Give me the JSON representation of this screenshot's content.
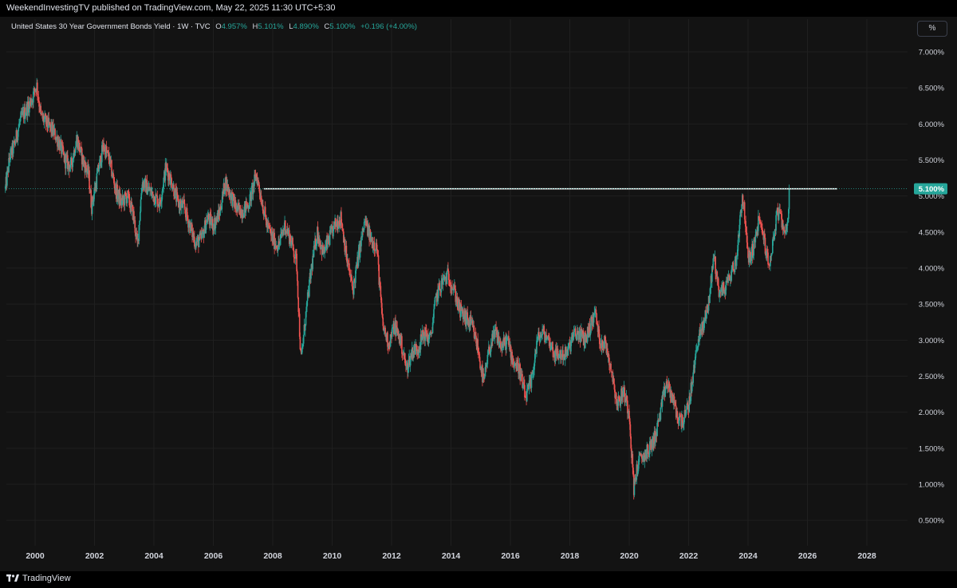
{
  "header": {
    "publish_line": "WeekendInvestingTV published on TradingView.com, May 22, 2025 11:30 UTC+5:30"
  },
  "legend": {
    "symbol": "United States 30 Year Government Bonds Yield · 1W · TVC",
    "o_key": "O",
    "o_val": "4.957%",
    "h_key": "H",
    "h_val": "5.101%",
    "l_key": "L",
    "l_val": "4.890%",
    "c_key": "C",
    "c_val": "5.100%",
    "change": "+0.196 (+4.00%)"
  },
  "scale_button": "%",
  "footer": {
    "brand": "TradingView"
  },
  "colors": {
    "up": "#26a69a",
    "down": "#ef5350",
    "background": "#131313",
    "price_badge": "#26a69a",
    "hline": "#ffffff"
  },
  "chart_data": {
    "type": "candlestick",
    "interval": "1W",
    "y_unit": "%",
    "ylim": [
      0.25,
      7.25
    ],
    "y_ticks": [
      "7.000%",
      "6.500%",
      "6.000%",
      "5.500%",
      "5.100%",
      "5.000%",
      "4.500%",
      "4.000%",
      "3.500%",
      "3.000%",
      "2.500%",
      "2.000%",
      "1.500%",
      "1.000%",
      "0.500%"
    ],
    "x_ticks": [
      "2000",
      "2002",
      "2004",
      "2006",
      "2008",
      "2010",
      "2012",
      "2014",
      "2016",
      "2018",
      "2020",
      "2022",
      "2024",
      "2026",
      "2028"
    ],
    "last_price_label": "5.100%",
    "last_price": 5.1,
    "horizontal_line": {
      "y": 5.1,
      "from": 2007.7,
      "to": 2027.0
    },
    "series": [
      {
        "t": 1999.0,
        "y": 5.1
      },
      {
        "t": 1999.15,
        "y": 5.55
      },
      {
        "t": 1999.3,
        "y": 5.7
      },
      {
        "t": 1999.5,
        "y": 6.05
      },
      {
        "t": 1999.7,
        "y": 6.2
      },
      {
        "t": 1999.9,
        "y": 6.35
      },
      {
        "t": 2000.05,
        "y": 6.55
      },
      {
        "t": 2000.2,
        "y": 6.1
      },
      {
        "t": 2000.4,
        "y": 6.0
      },
      {
        "t": 2000.6,
        "y": 5.9
      },
      {
        "t": 2000.8,
        "y": 5.75
      },
      {
        "t": 2001.0,
        "y": 5.5
      },
      {
        "t": 2001.2,
        "y": 5.4
      },
      {
        "t": 2001.4,
        "y": 5.8
      },
      {
        "t": 2001.6,
        "y": 5.5
      },
      {
        "t": 2001.8,
        "y": 5.3
      },
      {
        "t": 2001.9,
        "y": 4.85
      },
      {
        "t": 2002.1,
        "y": 5.3
      },
      {
        "t": 2002.3,
        "y": 5.7
      },
      {
        "t": 2002.5,
        "y": 5.5
      },
      {
        "t": 2002.7,
        "y": 5.1
      },
      {
        "t": 2002.9,
        "y": 4.9
      },
      {
        "t": 2003.1,
        "y": 5.0
      },
      {
        "t": 2003.3,
        "y": 4.75
      },
      {
        "t": 2003.45,
        "y": 4.3
      },
      {
        "t": 2003.6,
        "y": 5.2
      },
      {
        "t": 2003.8,
        "y": 5.1
      },
      {
        "t": 2004.0,
        "y": 5.0
      },
      {
        "t": 2004.2,
        "y": 4.9
      },
      {
        "t": 2004.4,
        "y": 5.4
      },
      {
        "t": 2004.6,
        "y": 5.2
      },
      {
        "t": 2004.8,
        "y": 4.9
      },
      {
        "t": 2005.0,
        "y": 4.85
      },
      {
        "t": 2005.2,
        "y": 4.6
      },
      {
        "t": 2005.4,
        "y": 4.35
      },
      {
        "t": 2005.6,
        "y": 4.4
      },
      {
        "t": 2005.8,
        "y": 4.7
      },
      {
        "t": 2006.0,
        "y": 4.6
      },
      {
        "t": 2006.2,
        "y": 4.75
      },
      {
        "t": 2006.4,
        "y": 5.2
      },
      {
        "t": 2006.6,
        "y": 5.0
      },
      {
        "t": 2006.8,
        "y": 4.8
      },
      {
        "t": 2007.0,
        "y": 4.8
      },
      {
        "t": 2007.2,
        "y": 4.9
      },
      {
        "t": 2007.45,
        "y": 5.3
      },
      {
        "t": 2007.6,
        "y": 5.0
      },
      {
        "t": 2007.8,
        "y": 4.6
      },
      {
        "t": 2008.0,
        "y": 4.4
      },
      {
        "t": 2008.2,
        "y": 4.3
      },
      {
        "t": 2008.4,
        "y": 4.6
      },
      {
        "t": 2008.6,
        "y": 4.4
      },
      {
        "t": 2008.8,
        "y": 4.1
      },
      {
        "t": 2008.95,
        "y": 2.7
      },
      {
        "t": 2009.1,
        "y": 3.3
      },
      {
        "t": 2009.3,
        "y": 4.0
      },
      {
        "t": 2009.5,
        "y": 4.5
      },
      {
        "t": 2009.7,
        "y": 4.2
      },
      {
        "t": 2009.9,
        "y": 4.4
      },
      {
        "t": 2010.1,
        "y": 4.6
      },
      {
        "t": 2010.3,
        "y": 4.7
      },
      {
        "t": 2010.5,
        "y": 4.1
      },
      {
        "t": 2010.7,
        "y": 3.7
      },
      {
        "t": 2010.9,
        "y": 4.2
      },
      {
        "t": 2011.1,
        "y": 4.65
      },
      {
        "t": 2011.3,
        "y": 4.4
      },
      {
        "t": 2011.5,
        "y": 4.3
      },
      {
        "t": 2011.7,
        "y": 3.2
      },
      {
        "t": 2011.9,
        "y": 2.95
      },
      {
        "t": 2012.1,
        "y": 3.2
      },
      {
        "t": 2012.3,
        "y": 3.0
      },
      {
        "t": 2012.5,
        "y": 2.6
      },
      {
        "t": 2012.7,
        "y": 2.85
      },
      {
        "t": 2012.9,
        "y": 2.9
      },
      {
        "t": 2013.1,
        "y": 3.1
      },
      {
        "t": 2013.3,
        "y": 3.0
      },
      {
        "t": 2013.5,
        "y": 3.6
      },
      {
        "t": 2013.7,
        "y": 3.8
      },
      {
        "t": 2013.9,
        "y": 3.9
      },
      {
        "t": 2014.1,
        "y": 3.7
      },
      {
        "t": 2014.3,
        "y": 3.4
      },
      {
        "t": 2014.5,
        "y": 3.3
      },
      {
        "t": 2014.7,
        "y": 3.2
      },
      {
        "t": 2014.9,
        "y": 2.9
      },
      {
        "t": 2015.1,
        "y": 2.4
      },
      {
        "t": 2015.3,
        "y": 2.9
      },
      {
        "t": 2015.5,
        "y": 3.1
      },
      {
        "t": 2015.7,
        "y": 2.9
      },
      {
        "t": 2015.9,
        "y": 3.0
      },
      {
        "t": 2016.1,
        "y": 2.7
      },
      {
        "t": 2016.3,
        "y": 2.6
      },
      {
        "t": 2016.5,
        "y": 2.2
      },
      {
        "t": 2016.7,
        "y": 2.4
      },
      {
        "t": 2016.9,
        "y": 3.0
      },
      {
        "t": 2017.1,
        "y": 3.1
      },
      {
        "t": 2017.3,
        "y": 3.0
      },
      {
        "t": 2017.5,
        "y": 2.8
      },
      {
        "t": 2017.7,
        "y": 2.8
      },
      {
        "t": 2017.9,
        "y": 2.8
      },
      {
        "t": 2018.1,
        "y": 3.05
      },
      {
        "t": 2018.3,
        "y": 3.1
      },
      {
        "t": 2018.5,
        "y": 3.0
      },
      {
        "t": 2018.7,
        "y": 3.2
      },
      {
        "t": 2018.85,
        "y": 3.4
      },
      {
        "t": 2019.0,
        "y": 3.0
      },
      {
        "t": 2019.2,
        "y": 2.95
      },
      {
        "t": 2019.4,
        "y": 2.6
      },
      {
        "t": 2019.6,
        "y": 2.1
      },
      {
        "t": 2019.8,
        "y": 2.3
      },
      {
        "t": 2020.0,
        "y": 2.0
      },
      {
        "t": 2020.15,
        "y": 0.95
      },
      {
        "t": 2020.3,
        "y": 1.3
      },
      {
        "t": 2020.5,
        "y": 1.4
      },
      {
        "t": 2020.7,
        "y": 1.5
      },
      {
        "t": 2020.9,
        "y": 1.7
      },
      {
        "t": 2021.1,
        "y": 2.1
      },
      {
        "t": 2021.25,
        "y": 2.4
      },
      {
        "t": 2021.45,
        "y": 2.2
      },
      {
        "t": 2021.65,
        "y": 1.9
      },
      {
        "t": 2021.85,
        "y": 1.9
      },
      {
        "t": 2022.0,
        "y": 2.1
      },
      {
        "t": 2022.15,
        "y": 2.5
      },
      {
        "t": 2022.3,
        "y": 3.0
      },
      {
        "t": 2022.5,
        "y": 3.2
      },
      {
        "t": 2022.7,
        "y": 3.6
      },
      {
        "t": 2022.85,
        "y": 4.2
      },
      {
        "t": 2023.0,
        "y": 3.7
      },
      {
        "t": 2023.2,
        "y": 3.7
      },
      {
        "t": 2023.4,
        "y": 3.9
      },
      {
        "t": 2023.6,
        "y": 4.1
      },
      {
        "t": 2023.8,
        "y": 5.0
      },
      {
        "t": 2023.9,
        "y": 4.7
      },
      {
        "t": 2024.0,
        "y": 4.1
      },
      {
        "t": 2024.2,
        "y": 4.3
      },
      {
        "t": 2024.35,
        "y": 4.65
      },
      {
        "t": 2024.5,
        "y": 4.5
      },
      {
        "t": 2024.7,
        "y": 4.0
      },
      {
        "t": 2024.85,
        "y": 4.4
      },
      {
        "t": 2025.0,
        "y": 4.8
      },
      {
        "t": 2025.15,
        "y": 4.6
      },
      {
        "t": 2025.3,
        "y": 4.5
      },
      {
        "t": 2025.4,
        "y": 5.1
      }
    ]
  }
}
